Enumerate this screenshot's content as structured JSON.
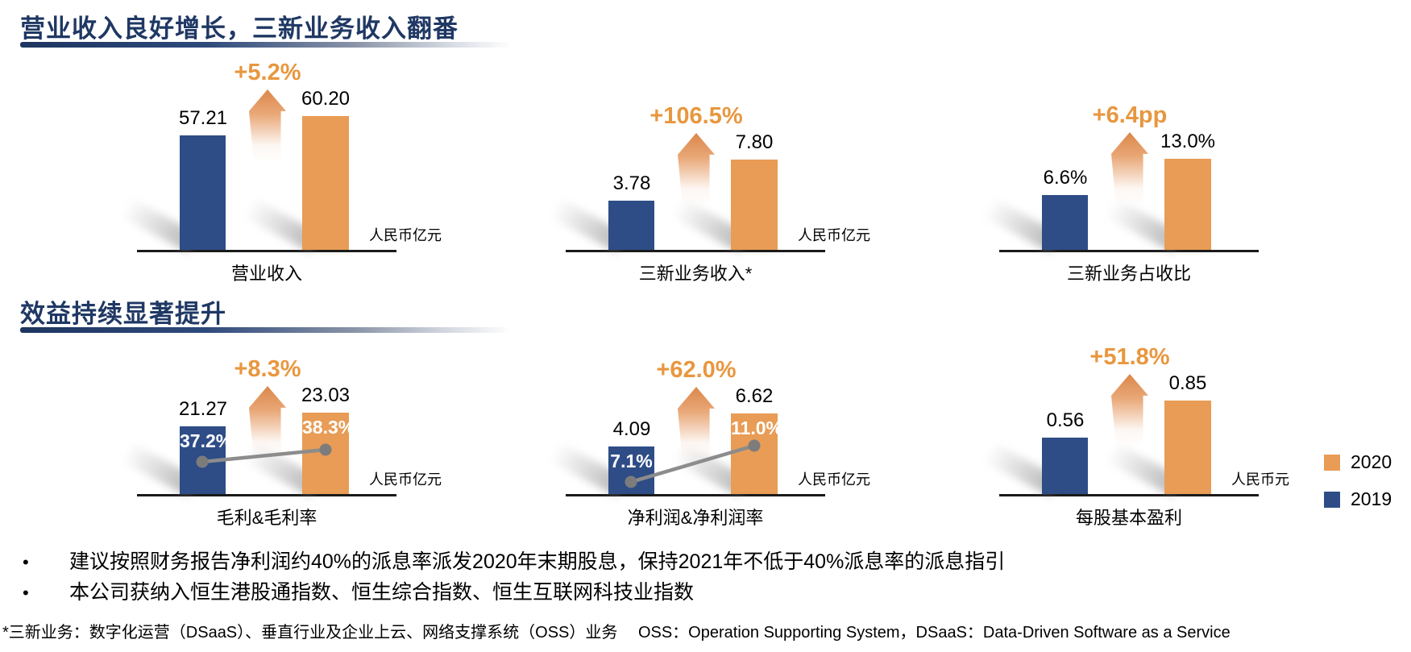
{
  "slide": {
    "sections": [
      {
        "title": "营业收入良好增长，三新业务收入翻番"
      },
      {
        "title": "效益持续显著提升"
      }
    ],
    "legend": [
      {
        "label": "2020",
        "color": "#E89C55"
      },
      {
        "label": "2019",
        "color": "#2E4D87"
      }
    ],
    "bullet_glyph": "•",
    "bullets": [
      "建议按照财务报告净利润约40%的派息率派发2020年末期股息，保持2021年不低于40%派息率的派息指引",
      "本公司获纳入恒生港股通指数、恒生综合指数、恒生互联网科技业指数"
    ],
    "footnote": "*三新业务：数字化运营（DSaaS）、垂直行业及企业上云、网络支撑系统（OSS）业务　 OSS：Operation Supporting System，DSaaS：Data-Driven Software as a Service"
  },
  "colors": {
    "title_navy": "#1F3864",
    "bar_blue": "#2E4D87",
    "bar_orange": "#E89C55",
    "growth_orange": "#E8973F",
    "trend_gray": "#8C8C8C",
    "axis_black": "#1A1A1A"
  },
  "chart_data": [
    {
      "type": "bar",
      "title": "营业收入",
      "unit": "人民币亿元",
      "growth": "+5.2%",
      "categories": [
        "2019",
        "2020"
      ],
      "values": [
        57.21,
        60.2
      ],
      "labels": [
        "57.21",
        "60.20"
      ]
    },
    {
      "type": "bar",
      "title": "三新业务收入*",
      "unit": "人民币亿元",
      "growth": "+106.5%",
      "categories": [
        "2019",
        "2020"
      ],
      "values": [
        3.78,
        7.8
      ],
      "labels": [
        "3.78",
        "7.80"
      ]
    },
    {
      "type": "bar",
      "title": "三新业务占收比",
      "growth": "+6.4pp",
      "categories": [
        "2019",
        "2020"
      ],
      "values": [
        6.6,
        13.0
      ],
      "labels": [
        "6.6%",
        "13.0%"
      ]
    },
    {
      "type": "bar",
      "title": "毛利&毛利率",
      "unit": "人民币亿元",
      "growth": "+8.3%",
      "categories": [
        "2019",
        "2020"
      ],
      "values": [
        21.27,
        23.03
      ],
      "labels": [
        "21.27",
        "23.03"
      ],
      "inner_pcts": [
        "37.2%",
        "38.3%"
      ]
    },
    {
      "type": "bar",
      "title": "净利润&净利润率",
      "unit": "人民币亿元",
      "growth": "+62.0%",
      "categories": [
        "2019",
        "2020"
      ],
      "values": [
        4.09,
        6.62
      ],
      "labels": [
        "4.09",
        "6.62"
      ],
      "inner_pcts": [
        "7.1%",
        "11.0%"
      ]
    },
    {
      "type": "bar",
      "title": "每股基本盈利",
      "unit": "人民币元",
      "growth": "+51.8%",
      "categories": [
        "2019",
        "2020"
      ],
      "values": [
        0.56,
        0.85
      ],
      "labels": [
        "0.56",
        "0.85"
      ]
    }
  ]
}
